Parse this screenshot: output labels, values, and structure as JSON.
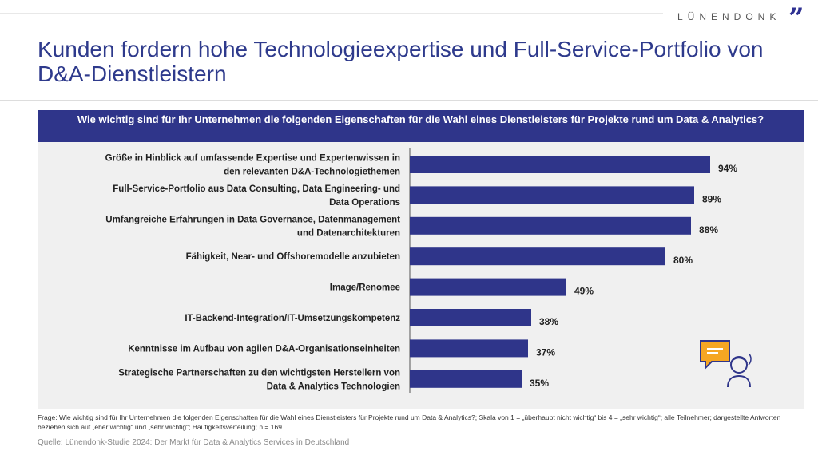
{
  "brand": {
    "logo": "LÜNENDONK",
    "accent": "#2f358a"
  },
  "title": "Kunden fordern hohe Technologieexpertise und Full-Service-Portfolio von D&A-Dienstleistern",
  "question": "Wie wichtig sind für Ihr Unternehmen die folgenden Eigenschaften für die Wahl eines Dienstleisters für Projekte rund um Data & Analytics?",
  "footnote": "Frage: Wie wichtig sind für Ihr Unternehmen die folgenden Eigenschaften für die Wahl eines Dienstleisters für Projekte rund um Data & Analytics?; Skala von 1 = „überhaupt nicht wichtig“ bis 4 = „sehr wichtig“; alle Teilnehmer; dargestellte Antworten beziehen sich auf „eher wichtig“ und „sehr wichtig“; Häufigkeitsverteilung; n = 169",
  "source": "Quelle: Lünendonk-Studie 2024: Der Markt für Data & Analytics Services in Deutschland",
  "chart_data": {
    "type": "bar",
    "orientation": "horizontal",
    "categories": [
      [
        "Größe in Hinblick auf umfassende Expertise und Expertenwissen in",
        "den relevanten D&A-Technologiethemen"
      ],
      [
        "Full-Service-Portfolio aus Data Consulting, Data Engineering- und",
        "Data Operations"
      ],
      [
        "Umfangreiche Erfahrungen in Data Governance, Datenmanagement",
        "und Datenarchitekturen"
      ],
      [
        "Fähigkeit, Near- und Offshoremodelle anzubieten"
      ],
      [
        "Image/Renomee"
      ],
      [
        "IT-Backend-Integration/IT-Umsetzungskompetenz"
      ],
      [
        "Kenntnisse im Aufbau von agilen D&A-Organisationseinheiten"
      ],
      [
        "Strategische Partnerschaften zu den wichtigsten Herstellern von",
        "Data & Analytics Technologien"
      ]
    ],
    "values": [
      94,
      89,
      88,
      80,
      49,
      38,
      37,
      35
    ],
    "labels": [
      "94%",
      "89%",
      "88%",
      "80%",
      "49%",
      "38%",
      "37%",
      "35%"
    ],
    "xlim": [
      0,
      100
    ],
    "bar_color": "#2f358a",
    "grid": false
  }
}
